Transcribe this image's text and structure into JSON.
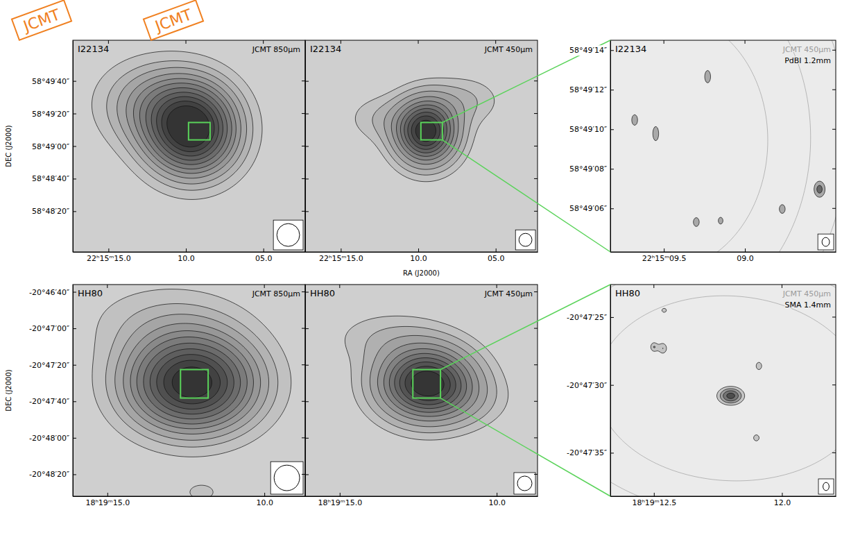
{
  "chart_data": [
    {
      "type": "contour",
      "title": "I22134",
      "subtitle": "JCMT 850µm",
      "annotations": [
        "JCMT"
      ],
      "xlim": [
        17.3,
        2.3
      ],
      "xticks": [
        {
          "value": 15,
          "label": "22ʰ15ᵐ15.0"
        },
        {
          "value": 10,
          "label": "10.0"
        },
        {
          "value": 5,
          "label": "05.0"
        }
      ],
      "ylim": [
        2875,
        3005
      ],
      "yticks": [
        {
          "value": 2980,
          "label": "58°49′40″"
        },
        {
          "value": 2960,
          "label": "58°49′20″"
        },
        {
          "value": 2940,
          "label": "58°49′00″"
        },
        {
          "value": 2920,
          "label": "58°48′40″"
        },
        {
          "value": 2900,
          "label": "58°48′20″"
        }
      ],
      "y_label": "DEC (J2000)",
      "levels": [
        0.08,
        0.15,
        0.22,
        0.3,
        0.38,
        0.46,
        0.55,
        0.64,
        0.73,
        0.82,
        0.91
      ],
      "sources": [
        {
          "x": 9.6,
          "y": 2950,
          "sx": 2.0,
          "sy": 19,
          "peak": 1
        },
        {
          "x": 12.2,
          "y": 2966,
          "sx": 2.4,
          "sy": 18,
          "peak": 0.28
        }
      ],
      "beam": [
        14,
        14
      ]
    },
    {
      "type": "contour",
      "title": "I22134",
      "subtitle": "JCMT 450µm",
      "annotations": [
        "JCMT"
      ],
      "xlim": [
        17.3,
        2.3
      ],
      "xticks": [
        {
          "value": 15,
          "label": "22ʰ15ᵐ15.0"
        },
        {
          "value": 10,
          "label": "10.0"
        },
        {
          "value": 5,
          "label": "05.0"
        }
      ],
      "ylim": [
        2875,
        3005
      ],
      "yticks": [
        2980,
        2960,
        2940,
        2920,
        2900
      ],
      "tick_labels": "x",
      "x_label": "RA (J2000)",
      "levels": [
        0.06,
        0.12,
        0.2,
        0.3,
        0.4,
        0.5,
        0.6,
        0.7,
        0.8,
        0.9
      ],
      "sources": [
        {
          "x": 9.5,
          "y": 2949,
          "sx": 1.3,
          "sy": 13,
          "peak": 1
        },
        {
          "x": 7.0,
          "y": 2968,
          "sx": 1.6,
          "sy": 10,
          "peak": 0.12
        },
        {
          "x": 12.5,
          "y": 2957,
          "sx": 1.5,
          "sy": 10,
          "peak": 0.1
        }
      ],
      "beam": [
        8,
        8
      ]
    },
    {
      "type": "contour",
      "title": "I22134",
      "subtitle": "PdBI 1.2mm",
      "xlim": [
        9.83,
        8.44
      ],
      "xticks": [
        {
          "value": 9.5,
          "label": "22ʰ15ᵐ09.5"
        },
        {
          "value": 9,
          "label": "09.0"
        }
      ],
      "ylim": [
        2943.8,
        2954.5
      ],
      "yticks": [
        {
          "value": 2954,
          "label": "58°49′14″"
        },
        {
          "value": 2952,
          "label": "58°49′12″"
        },
        {
          "value": 2950,
          "label": "58°49′10″"
        },
        {
          "value": 2948,
          "label": "58°49′08″"
        },
        {
          "value": 2946,
          "label": "58°49′06″"
        }
      ],
      "levels": [
        0.4,
        0.8
      ],
      "sources": [
        {
          "x": 9.68,
          "y": 2950.47,
          "sx": 0.02,
          "sy": 0.3,
          "peak": 0.6
        },
        {
          "x": 9.55,
          "y": 2949.78,
          "sx": 0.02,
          "sy": 0.4,
          "peak": 0.6
        },
        {
          "x": 9.23,
          "y": 2952.66,
          "sx": 0.02,
          "sy": 0.35,
          "peak": 0.6
        },
        {
          "x": 8.54,
          "y": 2946.97,
          "sx": 0.025,
          "sy": 0.3,
          "peak": 1
        },
        {
          "x": 8.77,
          "y": 2945.97,
          "sx": 0.02,
          "sy": 0.25,
          "peak": 0.6
        },
        {
          "x": 9.3,
          "y": 2945.31,
          "sx": 0.02,
          "sy": 0.25,
          "peak": 0.6
        },
        {
          "x": 9.15,
          "y": 2945.38,
          "sx": 0.018,
          "sy": 0.22,
          "peak": 0.55
        }
      ],
      "overlay": {
        "name": "JCMT 450µm",
        "levels": [
          0.06,
          0.12,
          0.2,
          0.3,
          0.4,
          0.5,
          0.6,
          0.7,
          0.8,
          0.9
        ],
        "sources": [
          {
            "x": 9.5,
            "y": 2949,
            "sx": 1.3,
            "sy": 13,
            "peak": 1
          },
          {
            "x": 7.0,
            "y": 2968,
            "sx": 1.6,
            "sy": 10,
            "peak": 0.12
          },
          {
            "x": 12.5,
            "y": 2957,
            "sx": 1.5,
            "sy": 10,
            "peak": 0.1
          }
        ]
      },
      "beam": [
        0.45,
        0.38
      ]
    },
    {
      "type": "contour",
      "title": "HH80",
      "subtitle": "JCMT 850µm",
      "xlim": [
        16.1,
        8.7
      ],
      "xticks": [
        {
          "value": 15,
          "label": "18ʰ19ᵐ15.0"
        },
        {
          "value": 10,
          "label": "10.0"
        }
      ],
      "ylim": [
        -2912,
        -2796
      ],
      "yticks": [
        {
          "value": -2800,
          "label": "-20°46′40″"
        },
        {
          "value": -2820,
          "label": "-20°47′00″"
        },
        {
          "value": -2840,
          "label": "-20°47′20″"
        },
        {
          "value": -2860,
          "label": "-20°47′40″"
        },
        {
          "value": -2880,
          "label": "-20°48′00″"
        },
        {
          "value": -2900,
          "label": "-20°48′20″"
        }
      ],
      "y_label": "DEC (J2000)",
      "levels": [
        0.08,
        0.15,
        0.22,
        0.3,
        0.38,
        0.46,
        0.55,
        0.64,
        0.73,
        0.82,
        0.91
      ],
      "sources": [
        {
          "x": 12.3,
          "y": -2850,
          "sx": 1.4,
          "sy": 18,
          "peak": 1
        },
        {
          "x": 13.2,
          "y": -2815,
          "sx": 1.8,
          "sy": 15,
          "peak": 0.12
        },
        {
          "x": 12.0,
          "y": -2910,
          "sx": 0.5,
          "sy": 5,
          "peak": 0.1
        }
      ],
      "beam": [
        14,
        14
      ]
    },
    {
      "type": "contour",
      "title": "HH80",
      "subtitle": "JCMT 450µm",
      "xlim": [
        16.1,
        8.7
      ],
      "xticks": [
        {
          "value": 15,
          "label": "18ʰ19ᵐ15.0"
        },
        {
          "value": 10,
          "label": "10.0"
        }
      ],
      "ylim": [
        -2912,
        -2796
      ],
      "yticks": [
        -2800,
        -2820,
        -2840,
        -2860,
        -2880,
        -2900
      ],
      "tick_labels": "x",
      "levels": [
        0.06,
        0.12,
        0.2,
        0.3,
        0.4,
        0.5,
        0.6,
        0.7,
        0.8,
        0.9
      ],
      "sources": [
        {
          "x": 12.23,
          "y": -2850,
          "sx": 1.0,
          "sy": 13,
          "peak": 1
        },
        {
          "x": 13.5,
          "y": -2825,
          "sx": 1.2,
          "sy": 10,
          "peak": 0.1
        },
        {
          "x": 11.0,
          "y": -2860,
          "sx": 1.0,
          "sy": 10,
          "peak": 0.08
        }
      ],
      "beam": [
        8,
        8
      ]
    },
    {
      "type": "contour",
      "title": "HH80",
      "subtitle": "SMA 1.4mm",
      "xlim": [
        12.67,
        11.79
      ],
      "xticks": [
        {
          "value": 12.5,
          "label": "18ʰ19ᵐ12.5"
        },
        {
          "value": 12,
          "label": "12.0"
        }
      ],
      "ylim": [
        -2858.2,
        -2842.6
      ],
      "yticks": [
        {
          "value": -2845,
          "label": "-20°47′25″"
        },
        {
          "value": -2850,
          "label": "-20°47′30″"
        },
        {
          "value": -2855,
          "label": "-20°47′35″"
        }
      ],
      "levels": [
        0.3,
        0.5,
        0.7,
        0.9
      ],
      "sources": [
        {
          "x": 12.2,
          "y": -2850.8,
          "sx": 0.035,
          "sy": 0.45,
          "peak": 1
        },
        {
          "x": 12.09,
          "y": -2848.6,
          "sx": 0.012,
          "sy": 0.3,
          "peak": 0.45
        },
        {
          "x": 12.1,
          "y": -2853.9,
          "sx": 0.012,
          "sy": 0.25,
          "peak": 0.45
        },
        {
          "x": 12.5,
          "y": -2847.2,
          "sx": 0.012,
          "sy": 0.3,
          "peak": 0.5
        },
        {
          "x": 12.465,
          "y": -2847.3,
          "sx": 0.014,
          "sy": 0.35,
          "peak": 0.5
        },
        {
          "x": 12.46,
          "y": -2844.5,
          "sx": 0.012,
          "sy": 0.2,
          "peak": 0.4
        }
      ],
      "overlay": {
        "name": "JCMT 450µm",
        "levels": [
          0.06,
          0.12,
          0.2,
          0.3,
          0.4,
          0.5,
          0.6,
          0.7,
          0.8,
          0.9
        ],
        "sources": [
          {
            "x": 12.23,
            "y": -2850,
            "sx": 1.0,
            "sy": 13,
            "peak": 1
          },
          {
            "x": 13.5,
            "y": -2825,
            "sx": 1.2,
            "sy": 10,
            "peak": 0.1
          },
          {
            "x": 11.0,
            "y": -2860,
            "sx": 1.0,
            "sy": 10,
            "peak": 0.08
          }
        ]
      },
      "beam": [
        0.6,
        0.45
      ]
    }
  ]
}
